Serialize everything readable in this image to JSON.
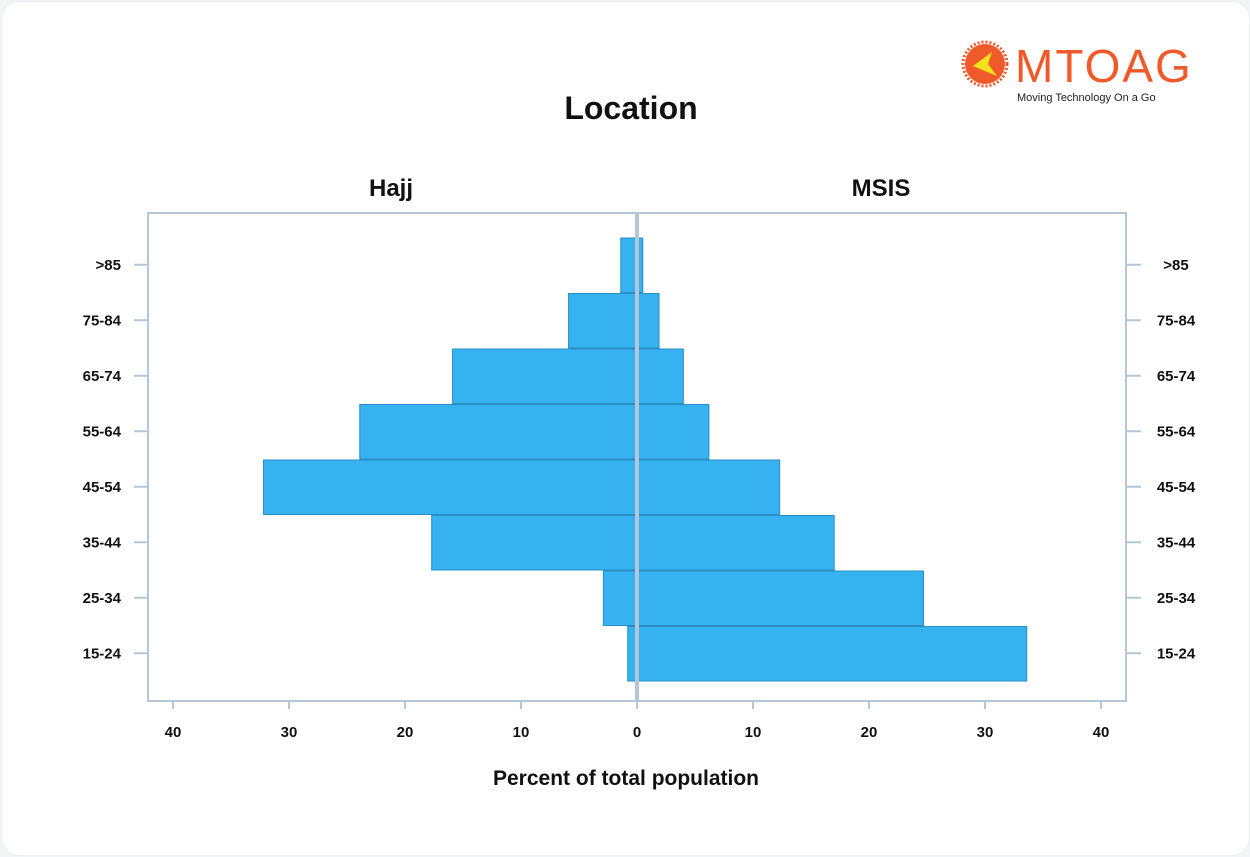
{
  "logo": {
    "text": "MTOAG",
    "tagline": "Moving Technology On a Go",
    "colors": {
      "primary": "#f05a2b",
      "accent": "#f3e21c"
    }
  },
  "chart_data": {
    "type": "bar",
    "orientation": "horizontal-pyramid",
    "title": "Location",
    "xlabel": "Percent of total population",
    "ylabel": "",
    "categories": [
      "15-24",
      "25-34",
      "35-44",
      "45-54",
      "55-64",
      "65-74",
      "75-84",
      ">85"
    ],
    "series": [
      {
        "name": "Hajj",
        "side": "left",
        "values": [
          0.8,
          2.9,
          17.7,
          32.2,
          23.9,
          15.9,
          5.9,
          1.4
        ]
      },
      {
        "name": "MSIS",
        "side": "right",
        "values": [
          33.6,
          24.7,
          17.0,
          12.3,
          6.2,
          4.0,
          1.9,
          0.5
        ]
      }
    ],
    "xlim": [
      -40,
      40
    ],
    "xticks": [
      40,
      30,
      20,
      10,
      0,
      10,
      20,
      30,
      40
    ],
    "grid": false,
    "bar_color": "#35b2ef",
    "bar_edge_color": "#2a8fc4",
    "axis_color": "#b4c6d8"
  }
}
